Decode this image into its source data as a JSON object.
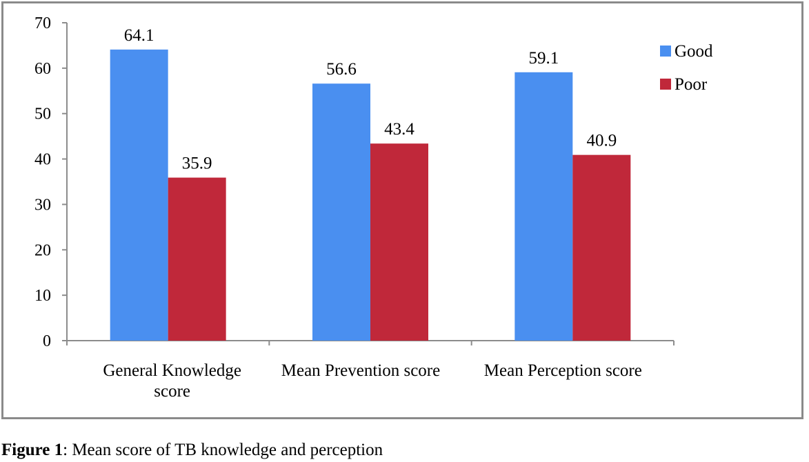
{
  "chart_data": {
    "type": "bar",
    "categories": [
      "General Knowledge score",
      "Mean Prevention score",
      "Mean Perception score"
    ],
    "category_lines": [
      [
        "General Knowledge",
        "score"
      ],
      [
        "Mean Prevention score"
      ],
      [
        "Mean Perception score"
      ]
    ],
    "series": [
      {
        "name": "Good",
        "values": [
          64.1,
          56.6,
          59.1
        ],
        "color": "#4a8ff0"
      },
      {
        "name": "Poor",
        "values": [
          35.9,
          43.4,
          40.9
        ],
        "color": "#c0283a"
      }
    ],
    "data_labels": [
      [
        "64.1",
        "56.6",
        "59.1"
      ],
      [
        "35.9",
        "43.4",
        "40.9"
      ]
    ],
    "ylim": [
      0,
      70
    ],
    "yticks": [
      0,
      10,
      20,
      30,
      40,
      50,
      60,
      70
    ],
    "title": "",
    "xlabel": "",
    "ylabel": "",
    "grid": false,
    "legend_position": "top-right"
  },
  "caption": {
    "label": "Figure 1",
    "text": ": Mean score of TB knowledge and perception"
  },
  "colors": {
    "axis": "#8c8c8c",
    "frame": "#8a8a8a"
  }
}
